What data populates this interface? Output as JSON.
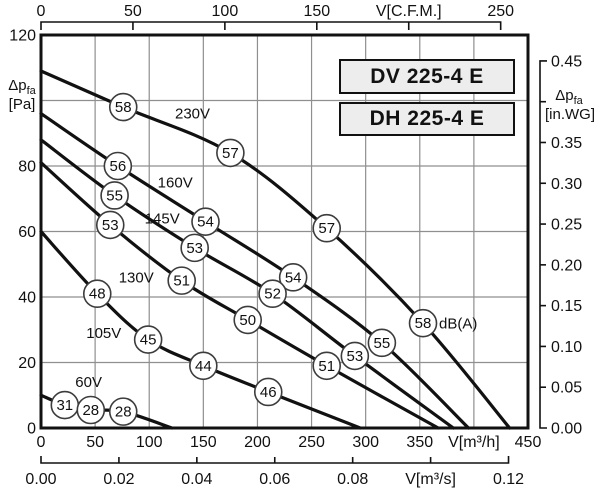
{
  "titles": {
    "model_1": "DV 225-4 E",
    "model_2": "DH 225-4 E"
  },
  "colors": {
    "background": "#ffffff",
    "curve": "#111111",
    "grid": "#8f8f8f",
    "border": "#111111",
    "box_fill": "#ededed",
    "text": "#111111",
    "circle_fill": "#ffffff",
    "circle_stroke": "#3c3c3c"
  },
  "axes": {
    "top": {
      "unit": "V[C.F.M.]",
      "ticks": [
        {
          "cfm": 0,
          "label": "0"
        },
        {
          "cfm": 50,
          "label": "50"
        },
        {
          "cfm": 100,
          "label": "100"
        },
        {
          "cfm": 150,
          "label": "150"
        },
        {
          "cfm": 200,
          "label": "V[C.F.M.]"
        },
        {
          "cfm": 250,
          "label": "250"
        }
      ]
    },
    "left": {
      "unit_main": "Δp",
      "unit_sub": "fa",
      "unit_bracket": "[Pa]",
      "ticks": [
        {
          "pa": 120,
          "label": "120"
        },
        {
          "pa": 100,
          "label": ""
        },
        {
          "pa": 80,
          "label": "80"
        },
        {
          "pa": 60,
          "label": "60"
        },
        {
          "pa": 40,
          "label": "40"
        },
        {
          "pa": 20,
          "label": "20"
        },
        {
          "pa": 0,
          "label": "0"
        }
      ]
    },
    "right": {
      "unit_main": "Δp",
      "unit_sub": "fa",
      "unit_bracket": "[in.WG]",
      "ticks": [
        {
          "inwg": 0.45,
          "label": "0.45"
        },
        {
          "inwg": 0.4,
          "label": ""
        },
        {
          "inwg": 0.35,
          "label": "0.35"
        },
        {
          "inwg": 0.3,
          "label": "0.30"
        },
        {
          "inwg": 0.25,
          "label": "0.25"
        },
        {
          "inwg": 0.2,
          "label": "0.20"
        },
        {
          "inwg": 0.15,
          "label": "0.15"
        },
        {
          "inwg": 0.1,
          "label": "0.10"
        },
        {
          "inwg": 0.05,
          "label": "0.05"
        },
        {
          "inwg": 0.0,
          "label": "0.00"
        }
      ]
    },
    "bottom": {
      "unit": "V[m³/h]",
      "ticks": [
        {
          "m3h": 0,
          "label": "0"
        },
        {
          "m3h": 50,
          "label": "50"
        },
        {
          "m3h": 100,
          "label": "100"
        },
        {
          "m3h": 150,
          "label": "150"
        },
        {
          "m3h": 200,
          "label": "200"
        },
        {
          "m3h": 250,
          "label": "250"
        },
        {
          "m3h": 300,
          "label": "300"
        },
        {
          "m3h": 350,
          "label": "350"
        },
        {
          "m3h": 400,
          "label": "V[m³/h]"
        },
        {
          "m3h": 450,
          "label": "450"
        }
      ]
    },
    "bottom2": {
      "unit": "V[m³/s]",
      "ticks": [
        {
          "m3s": 0.0,
          "label": "0.00"
        },
        {
          "m3s": 0.02,
          "label": "0.02"
        },
        {
          "m3s": 0.04,
          "label": "0.04"
        },
        {
          "m3s": 0.06,
          "label": "0.06"
        },
        {
          "m3s": 0.08,
          "label": "0.08"
        },
        {
          "m3s": 0.1,
          "label": "V[m³/s]"
        },
        {
          "m3s": 0.12,
          "label": "0.12"
        }
      ]
    }
  },
  "chart_data": {
    "type": "line",
    "title": "DV 225-4 E / DH 225-4 E fan performance curves",
    "xlabel": "V[m³/h]",
    "ylabel": "Δpfa [Pa]",
    "x_range_m3h": [
      0,
      450
    ],
    "y_range_pa": [
      0,
      120
    ],
    "grid": true,
    "noise_unit": "dB(A)",
    "series": [
      {
        "name": "230V",
        "label_pos": [
          140,
          96
        ],
        "points": [
          [
            0,
            109
          ],
          [
            76,
            98
          ],
          [
            175,
            84
          ],
          [
            264,
            61
          ],
          [
            353,
            32
          ],
          [
            433,
            0
          ]
        ],
        "markers": [
          {
            "i": 1,
            "t": "58"
          },
          {
            "i": 2,
            "t": "57"
          },
          {
            "i": 3,
            "t": "57"
          },
          {
            "i": 4,
            "t": "58",
            "suffix": "dB(A)"
          }
        ]
      },
      {
        "name": "160V",
        "label_pos": [
          124,
          75
        ],
        "points": [
          [
            0,
            96
          ],
          [
            71,
            80
          ],
          [
            152,
            63
          ],
          [
            233,
            46
          ],
          [
            315,
            26
          ],
          [
            395,
            0
          ]
        ],
        "markers": [
          {
            "i": 1,
            "t": "56"
          },
          {
            "i": 2,
            "t": "54"
          },
          {
            "i": 3,
            "t": "54"
          },
          {
            "i": 4,
            "t": "55"
          }
        ]
      },
      {
        "name": "145V",
        "label_pos": [
          112,
          64
        ],
        "points": [
          [
            0,
            88
          ],
          [
            68,
            71
          ],
          [
            142,
            55
          ],
          [
            214,
            41
          ],
          [
            290,
            22
          ],
          [
            381,
            0
          ]
        ],
        "markers": [
          {
            "i": 1,
            "t": "55"
          },
          {
            "i": 2,
            "t": "53"
          },
          {
            "i": 3,
            "t": "52"
          },
          {
            "i": 4,
            "t": "53"
          }
        ]
      },
      {
        "name": "130V",
        "label_pos": [
          88,
          46
        ],
        "points": [
          [
            0,
            81
          ],
          [
            64,
            62
          ],
          [
            130,
            45
          ],
          [
            191,
            33
          ],
          [
            264,
            19
          ],
          [
            367,
            0
          ]
        ],
        "markers": [
          {
            "i": 1,
            "t": "53"
          },
          {
            "i": 2,
            "t": "51"
          },
          {
            "i": 3,
            "t": "50"
          },
          {
            "i": 4,
            "t": "51"
          }
        ]
      },
      {
        "name": "105V",
        "label_pos": [
          58,
          29
        ],
        "points": [
          [
            0,
            60
          ],
          [
            52,
            41
          ],
          [
            99,
            27
          ],
          [
            150,
            19
          ],
          [
            210,
            11
          ],
          [
            295,
            0
          ]
        ],
        "markers": [
          {
            "i": 1,
            "t": "48"
          },
          {
            "i": 2,
            "t": "45"
          },
          {
            "i": 3,
            "t": "44"
          },
          {
            "i": 4,
            "t": "46"
          }
        ]
      },
      {
        "name": "60V",
        "label_pos": [
          44,
          14
        ],
        "points": [
          [
            0,
            10
          ],
          [
            22,
            7
          ],
          [
            46,
            5.5
          ],
          [
            76,
            5
          ],
          [
            121,
            0
          ]
        ],
        "markers": [
          {
            "i": 1,
            "t": "31"
          },
          {
            "i": 2,
            "t": "28"
          },
          {
            "i": 3,
            "t": "28"
          }
        ]
      }
    ]
  }
}
